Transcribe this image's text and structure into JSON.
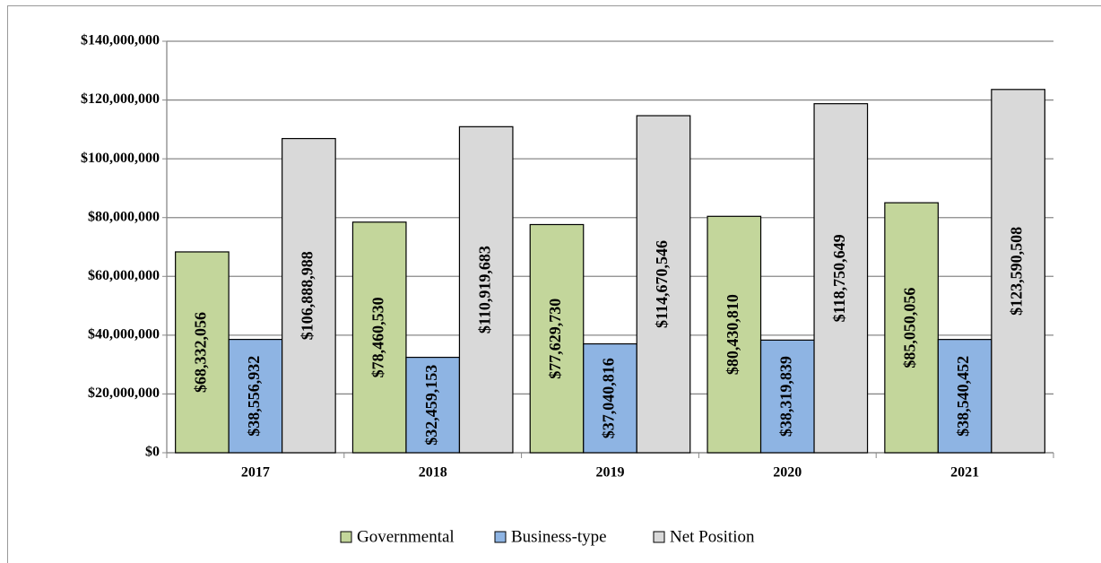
{
  "chart_data": {
    "type": "bar",
    "categories": [
      "2017",
      "2018",
      "2019",
      "2020",
      "2021"
    ],
    "series": [
      {
        "name": "Governmental",
        "color": "#c3d69b",
        "values": [
          68332056,
          78460530,
          77629730,
          80430810,
          85050056
        ],
        "value_labels": [
          "$68,332,056",
          "$78,460,530",
          "$77,629,730",
          "$80,430,810",
          "$85,050,056"
        ]
      },
      {
        "name": "Business-type",
        "color": "#8eb4e3",
        "values": [
          38556932,
          32459153,
          37040816,
          38319839,
          38540452
        ],
        "value_labels": [
          "$38,556,932",
          "$32,459,153",
          "$37,040,816",
          "$38,319,839",
          "$38,540,452"
        ]
      },
      {
        "name": "Net Position",
        "color": "#d9d9d9",
        "values": [
          106888988,
          110919683,
          114670546,
          118750649,
          123590508
        ],
        "value_labels": [
          "$106,888,988",
          "$110,919,683",
          "$114,670,546",
          "$118,750,649",
          "$123,590,508"
        ]
      }
    ],
    "ylim": [
      0,
      140000000
    ],
    "yticks": [
      {
        "value": 0,
        "label": "$0"
      },
      {
        "value": 20000000,
        "label": "$20,000,000"
      },
      {
        "value": 40000000,
        "label": "$40,000,000"
      },
      {
        "value": 60000000,
        "label": "$60,000,000"
      },
      {
        "value": 80000000,
        "label": "$80,000,000"
      },
      {
        "value": 100000000,
        "label": "$100,000,000"
      },
      {
        "value": 120000000,
        "label": "$120,000,000"
      },
      {
        "value": 140000000,
        "label": "$140,000,000"
      }
    ],
    "grid": true,
    "legend": "bottom"
  }
}
